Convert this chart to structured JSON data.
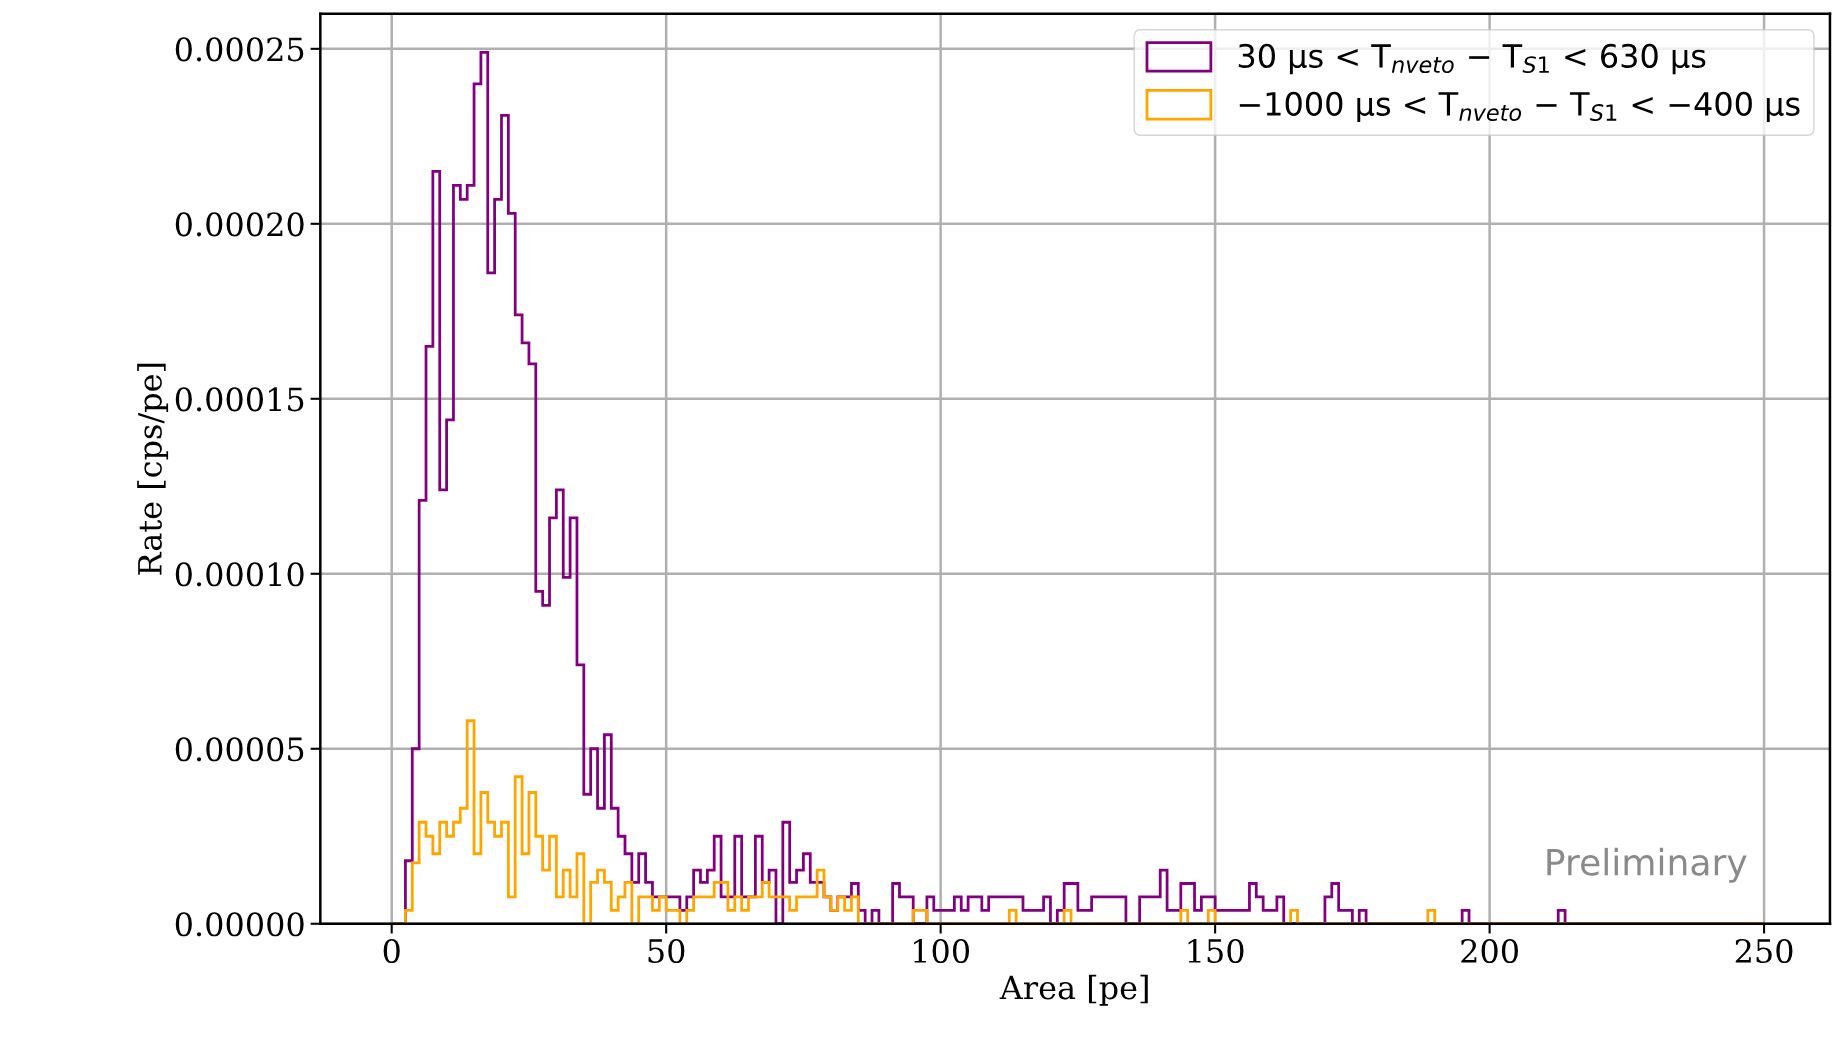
{
  "chart_data": {
    "type": "histogram",
    "xlabel": "Area [pe]",
    "ylabel": "Rate [cps/pe]",
    "bins": [
      0,
      1.25,
      2.5,
      3.75,
      5,
      6.25,
      7.5,
      8.75,
      10,
      11.25,
      12.5,
      13.75,
      15,
      16.25,
      17.5,
      18.75,
      20,
      21.25,
      22.5,
      23.75,
      25,
      26.25,
      27.5,
      28.75,
      30,
      31.25,
      32.5,
      33.75,
      35,
      36.25,
      37.5,
      38.75,
      40,
      41.25,
      42.5,
      43.75,
      45,
      46.25,
      47.5,
      48.75,
      50,
      51.25,
      52.5,
      53.75,
      55,
      56.25,
      57.5,
      58.75,
      60,
      61.25,
      62.5,
      63.75,
      65,
      66.25,
      67.5,
      68.75,
      70,
      71.25,
      72.5,
      73.75,
      75,
      76.25,
      77.5,
      78.75,
      80,
      81.25,
      82.5,
      83.75,
      85,
      86.25,
      87.5,
      88.75,
      90,
      91.25,
      92.5,
      93.75,
      95,
      96.25,
      97.5,
      98.75,
      100,
      101.25,
      102.5,
      103.75,
      105,
      106.25,
      107.5,
      108.75,
      110,
      111.25,
      112.5,
      113.75,
      115,
      116.25,
      117.5,
      118.75,
      120,
      121.25,
      122.5,
      123.75,
      125,
      126.25,
      127.5,
      128.75,
      130,
      131.25,
      132.5,
      133.75,
      135,
      136.25,
      137.5,
      138.75,
      140,
      141.25,
      142.5,
      143.75,
      145,
      146.25,
      147.5,
      148.75,
      150,
      151.25,
      152.5,
      153.75,
      155,
      156.25,
      157.5,
      158.75,
      160,
      161.25,
      162.5,
      163.75,
      165,
      166.25,
      167.5,
      168.75,
      170,
      171.25,
      172.5,
      173.75,
      175,
      176.25,
      177.5,
      178.75,
      180,
      181.25,
      182.5,
      183.75,
      185,
      186.25,
      187.5,
      188.75,
      190,
      191.25,
      192.5,
      193.75,
      195,
      196.25,
      197.5,
      198.75,
      200,
      201.25,
      202.5,
      203.75,
      205,
      206.25,
      207.5,
      208.75,
      210,
      211.25,
      212.5,
      213.75,
      215,
      216.25,
      217.5,
      218.75,
      220,
      221.25,
      222.5,
      223.75,
      225,
      226.25,
      227.5,
      228.75,
      230,
      231.25,
      232.5,
      233.75,
      235,
      236.25,
      237.5,
      238.75,
      240,
      241.25,
      242.5,
      243.75,
      245,
      246.25,
      247.5,
      248.75,
      250
    ],
    "series": [
      {
        "name": "30 μs < T$_{nveto}$ − T$_{S1}$ < 630 μs",
        "color": "#800080",
        "values": [
          0,
          0,
          1.8e-05,
          5e-05,
          0.000121,
          0.000165,
          0.000215,
          0.000124,
          0.000144,
          0.000211,
          0.000207,
          0.000211,
          0.00024,
          0.000249,
          0.000186,
          0.000207,
          0.000231,
          0.000203,
          0.000174,
          0.000166,
          0.00016,
          9.5e-05,
          9.1e-05,
          0.000116,
          0.000124,
          9.9e-05,
          0.000116,
          7.4e-05,
          3.7e-05,
          5e-05,
          3.3e-05,
          5.4e-05,
          3.3e-05,
          2.5e-05,
          2e-05,
          1.18e-05,
          2e-05,
          1.18e-05,
          7.7e-06,
          7.7e-06,
          7.7e-06,
          7.7e-06,
          3.8e-06,
          7.7e-06,
          1.53e-05,
          1.18e-05,
          1.53e-05,
          2.5e-05,
          7.7e-06,
          7.7e-06,
          2.5e-05,
          7.7e-06,
          7.7e-06,
          2.5e-05,
          1.18e-05,
          1.53e-05,
          0,
          2.9e-05,
          1.18e-05,
          1.53e-05,
          2e-05,
          1.18e-05,
          1.18e-05,
          7.7e-06,
          3.8e-06,
          7.7e-06,
          7.7e-06,
          1.15e-05,
          3.8e-06,
          0,
          3.8e-06,
          0,
          0,
          1.15e-05,
          7.7e-06,
          7.7e-06,
          0,
          0,
          7.7e-06,
          3.8e-06,
          3.8e-06,
          3.8e-06,
          7.7e-06,
          3.8e-06,
          7.7e-06,
          7.7e-06,
          3.8e-06,
          7.7e-06,
          7.7e-06,
          7.7e-06,
          7.7e-06,
          7.7e-06,
          3.8e-06,
          3.8e-06,
          3.8e-06,
          7.7e-06,
          0,
          3.8e-06,
          1.15e-05,
          1.15e-05,
          3.8e-06,
          3.8e-06,
          7.7e-06,
          7.7e-06,
          7.7e-06,
          7.7e-06,
          7.7e-06,
          0,
          0,
          7.7e-06,
          7.7e-06,
          7.7e-06,
          1.53e-05,
          3.8e-06,
          3.8e-06,
          1.15e-05,
          1.15e-05,
          3.8e-06,
          7.7e-06,
          7.7e-06,
          3.8e-06,
          3.8e-06,
          3.8e-06,
          3.8e-06,
          3.8e-06,
          1.15e-05,
          7.7e-06,
          3.8e-06,
          3.8e-06,
          7.7e-06,
          0,
          0,
          0,
          0,
          0,
          0,
          7.7e-06,
          1.15e-05,
          3.8e-06,
          3.8e-06,
          0,
          3.8e-06,
          0,
          0,
          0,
          0,
          0,
          0,
          0,
          0,
          0,
          0,
          0,
          0,
          0,
          0,
          3.8e-06,
          0,
          0,
          0,
          0,
          0,
          0,
          0,
          0,
          0,
          0,
          0,
          0,
          0,
          3.8e-06,
          0,
          0,
          0,
          0,
          0,
          0,
          0,
          0,
          0,
          0,
          0,
          0,
          0,
          0,
          0,
          0,
          0,
          0,
          0,
          0,
          0,
          0,
          0,
          0,
          0,
          0,
          0,
          0,
          0
        ]
      },
      {
        "name": "−1000 μs < T$_{nveto}$ − T$_{S1}$ < −400 μs",
        "color": "#ffa500",
        "values": [
          0,
          0,
          3.8e-06,
          1.74e-05,
          2.9e-05,
          2.5e-05,
          2e-05,
          2.9e-05,
          2.5e-05,
          2.9e-05,
          3.3e-05,
          5.8e-05,
          2e-05,
          3.75e-05,
          2.9e-05,
          2.5e-05,
          2.9e-05,
          7.7e-06,
          4.2e-05,
          2e-05,
          3.75e-05,
          2.5e-05,
          1.53e-05,
          2.5e-05,
          7.7e-06,
          1.53e-05,
          7.7e-06,
          2e-05,
          0,
          1.18e-05,
          1.53e-05,
          1.18e-05,
          3.8e-06,
          7.7e-06,
          1.18e-05,
          0,
          7.7e-06,
          7.7e-06,
          3.8e-06,
          7.7e-06,
          3.8e-06,
          3.8e-06,
          0,
          3.8e-06,
          7.7e-06,
          7.7e-06,
          7.7e-06,
          1.18e-05,
          1.18e-05,
          3.8e-06,
          7.7e-06,
          3.8e-06,
          7.7e-06,
          7.7e-06,
          1.18e-05,
          7.7e-06,
          7.7e-06,
          7.7e-06,
          3.8e-06,
          7.7e-06,
          7.7e-06,
          7.7e-06,
          1.53e-05,
          7.7e-06,
          3.8e-06,
          7.7e-06,
          3.8e-06,
          7.7e-06,
          0,
          0,
          0,
          0,
          0,
          0,
          0,
          0,
          3.8e-06,
          3.8e-06,
          0,
          0,
          0,
          0,
          0,
          0,
          0,
          0,
          0,
          0,
          0,
          0,
          3.8e-06,
          0,
          0,
          0,
          0,
          0,
          0,
          0,
          3.8e-06,
          0,
          0,
          0,
          0,
          0,
          0,
          0,
          0,
          0,
          0,
          0,
          0,
          0,
          0,
          0,
          0,
          3.8e-06,
          0,
          0,
          0,
          3.8e-06,
          0,
          0,
          0,
          0,
          0,
          0,
          0,
          0,
          0,
          0,
          0,
          3.8e-06,
          0,
          0,
          0,
          0,
          0,
          0,
          0,
          0,
          0,
          0,
          0,
          0,
          0,
          0,
          0,
          0,
          0,
          0,
          0,
          3.8e-06,
          0,
          0,
          0,
          0,
          0,
          0,
          0,
          0,
          0,
          0,
          0,
          0,
          0,
          0,
          0,
          0,
          0,
          0,
          0,
          0,
          0,
          0,
          0,
          0,
          0,
          0,
          0,
          0,
          0,
          0,
          0,
          0,
          0,
          0,
          0,
          0,
          0,
          0,
          0,
          0,
          0,
          0,
          0,
          0,
          0,
          0,
          0,
          0
        ]
      }
    ],
    "xlim": [
      -13,
      262
    ],
    "xticks": [
      0,
      50,
      100,
      150,
      200,
      250
    ],
    "ylim": [
      0,
      0.00026
    ],
    "yticks": [
      {
        "value": 0,
        "label": "0.00000"
      },
      {
        "value": 5e-05,
        "label": "0.00005"
      },
      {
        "value": 0.0001,
        "label": "0.00010"
      },
      {
        "value": 0.00015,
        "label": "0.00015"
      },
      {
        "value": 0.0002,
        "label": "0.00020"
      },
      {
        "value": 0.00025,
        "label": "0.00025"
      }
    ],
    "grid": true,
    "legend": "top right",
    "annotations": [
      "Preliminary"
    ]
  }
}
